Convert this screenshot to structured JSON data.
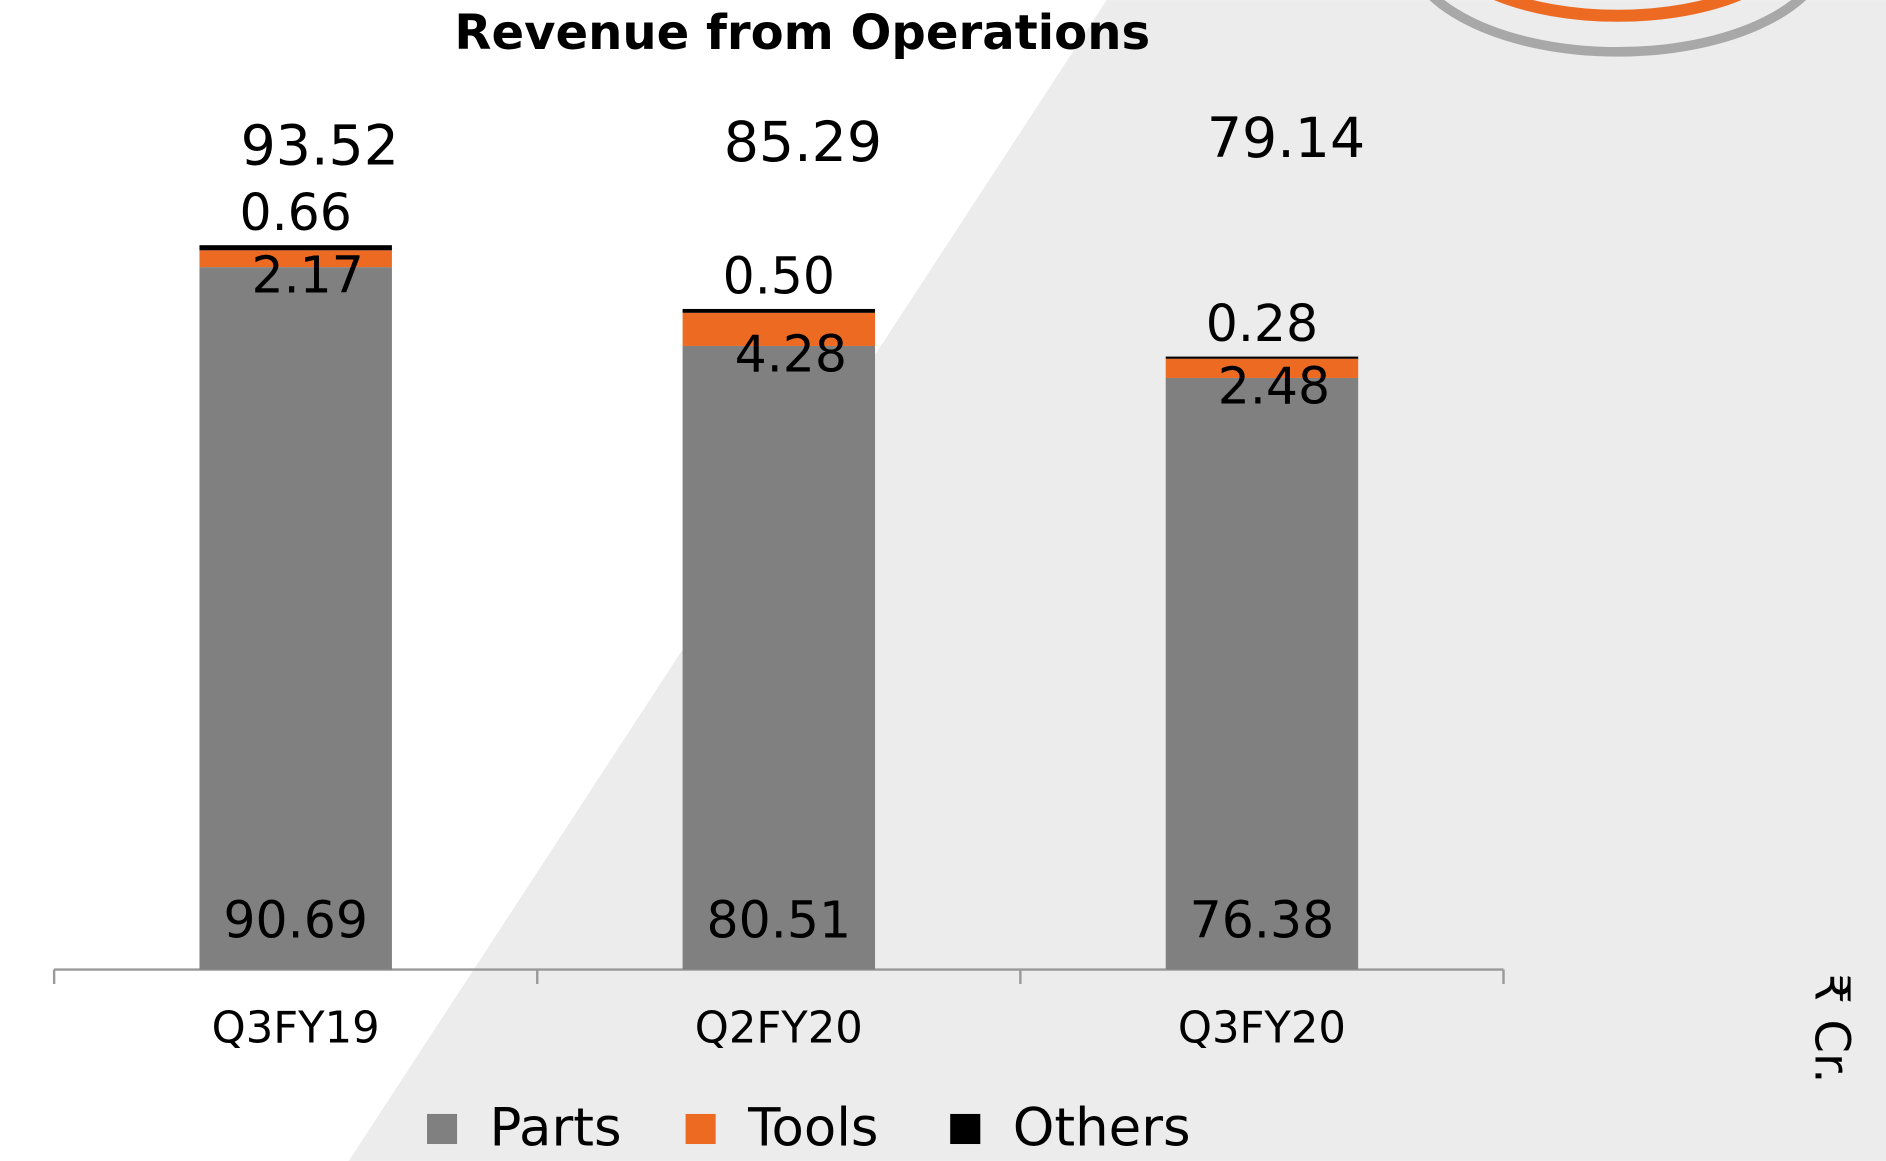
{
  "chart_data": {
    "type": "stacked_bar",
    "title": "Revenue from Operations",
    "y_label": "₹ Cr.",
    "categories": [
      "Q3FY19",
      "Q2FY20",
      "Q3FY20"
    ],
    "series": [
      {
        "name": "Parts",
        "color": "#808080",
        "values": [
          90.69,
          80.51,
          76.38
        ]
      },
      {
        "name": "Tools",
        "color": "#ed6a23",
        "values": [
          2.17,
          4.28,
          2.48
        ]
      },
      {
        "name": "Others",
        "color": "#000000",
        "values": [
          0.66,
          0.5,
          0.28
        ]
      }
    ],
    "value_labels": [
      [
        "90.69",
        "80.51",
        "76.38"
      ],
      [
        "2.17",
        "4.28",
        "2.48"
      ],
      [
        "0.66",
        "0.50",
        "0.28"
      ]
    ],
    "totals": [
      93.52,
      85.29,
      79.14
    ],
    "ylim": [
      0,
      100
    ],
    "legend": "bottom"
  }
}
